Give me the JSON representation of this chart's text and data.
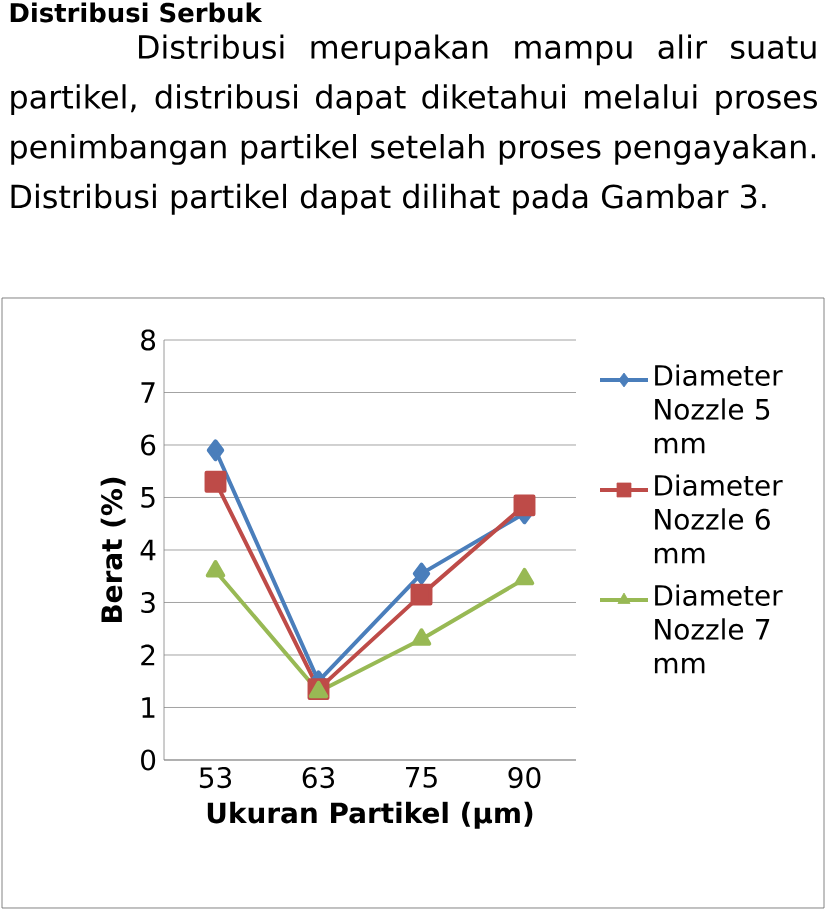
{
  "chart_data": {
    "type": "line",
    "title": "Distribusi Serbuk",
    "annotations": [
      "Distribusi merupakan mampu alir suatu partikel, distribusi dapat diketahui melalui proses penimbangan partikel setelah proses pengayakan. Distribusi partikel dapat dilihat pada Gambar 3."
    ],
    "xlabel": "Ukuran Partikel (µm)",
    "ylabel": "Berat (%)",
    "categories": [
      "53",
      "63",
      "75",
      "90"
    ],
    "series": [
      {
        "name": "Diameter Nozzle 5 mm",
        "color": "#4a7ebb",
        "marker": "diamond",
        "values": [
          5.9,
          1.5,
          3.55,
          4.7
        ]
      },
      {
        "name": "Diameter Nozzle 6 mm",
        "color": "#be4b48",
        "marker": "square",
        "values": [
          5.3,
          1.35,
          3.15,
          4.85
        ]
      },
      {
        "name": "Diameter Nozzle 7 mm",
        "color": "#98b954",
        "marker": "triangle",
        "values": [
          3.6,
          1.3,
          2.3,
          3.45
        ]
      }
    ],
    "ylim": [
      0,
      8
    ],
    "yticks": [
      0,
      1,
      2,
      3,
      4,
      5,
      6,
      7,
      8
    ],
    "grid": "y",
    "legend": "right"
  }
}
